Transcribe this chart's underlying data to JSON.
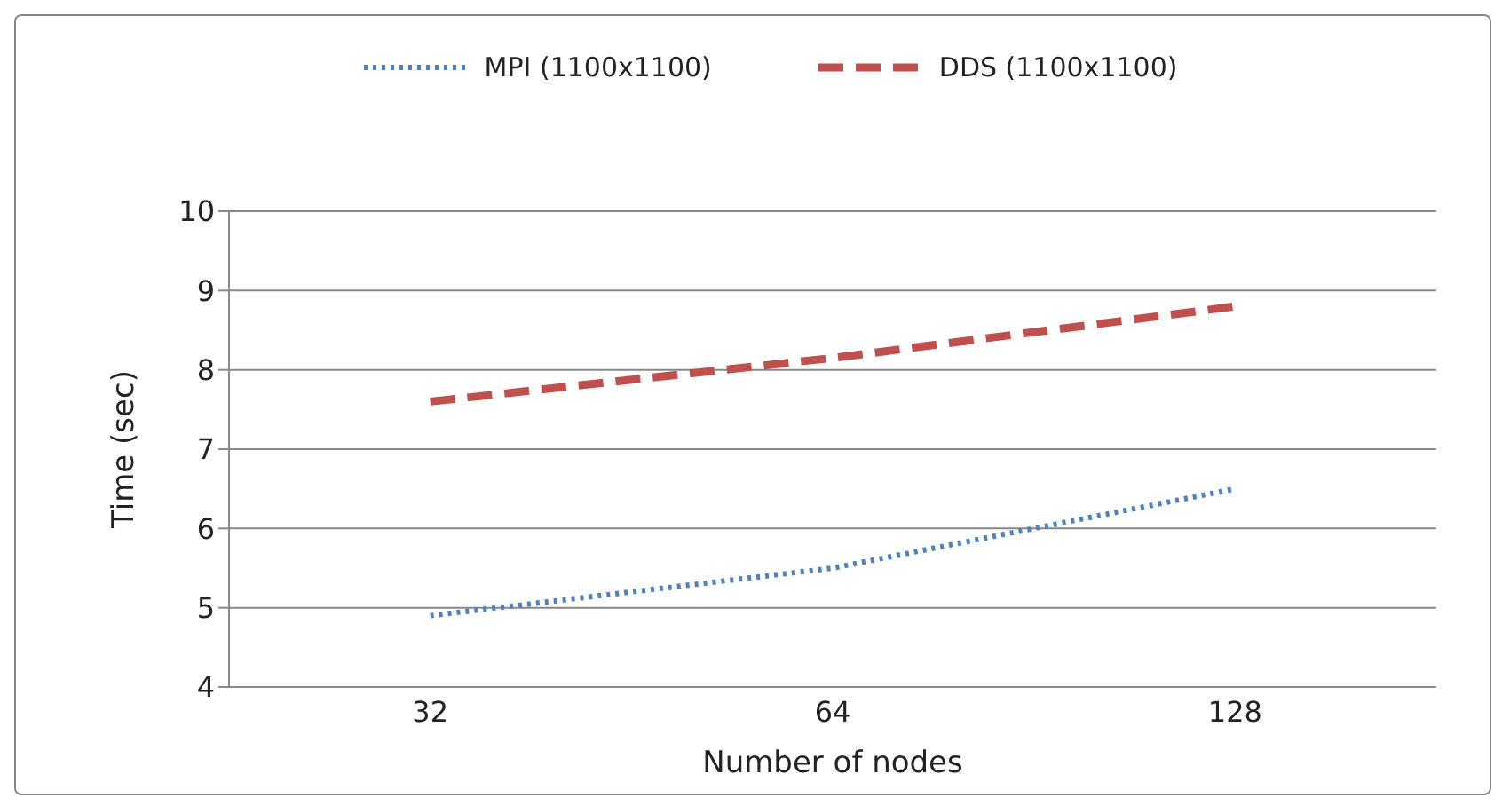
{
  "chart_data": {
    "type": "line",
    "xlabel": "Number of nodes",
    "ylabel": "Time (sec)",
    "categories": [
      "32",
      "64",
      "128"
    ],
    "series": [
      {
        "name": "MPI (1100x1100)",
        "color": "#4f81bd",
        "line_style": "dotted",
        "values": [
          4.9,
          5.5,
          6.5
        ]
      },
      {
        "name": "DDS (1100x1100)",
        "color": "#c0504d",
        "line_style": "dashed",
        "values": [
          7.6,
          8.15,
          8.8
        ]
      }
    ],
    "ylim": [
      4,
      10
    ],
    "yticks": [
      4,
      5,
      6,
      7,
      8,
      9,
      10
    ],
    "grid": "y",
    "legend": "top",
    "marker": "none"
  }
}
